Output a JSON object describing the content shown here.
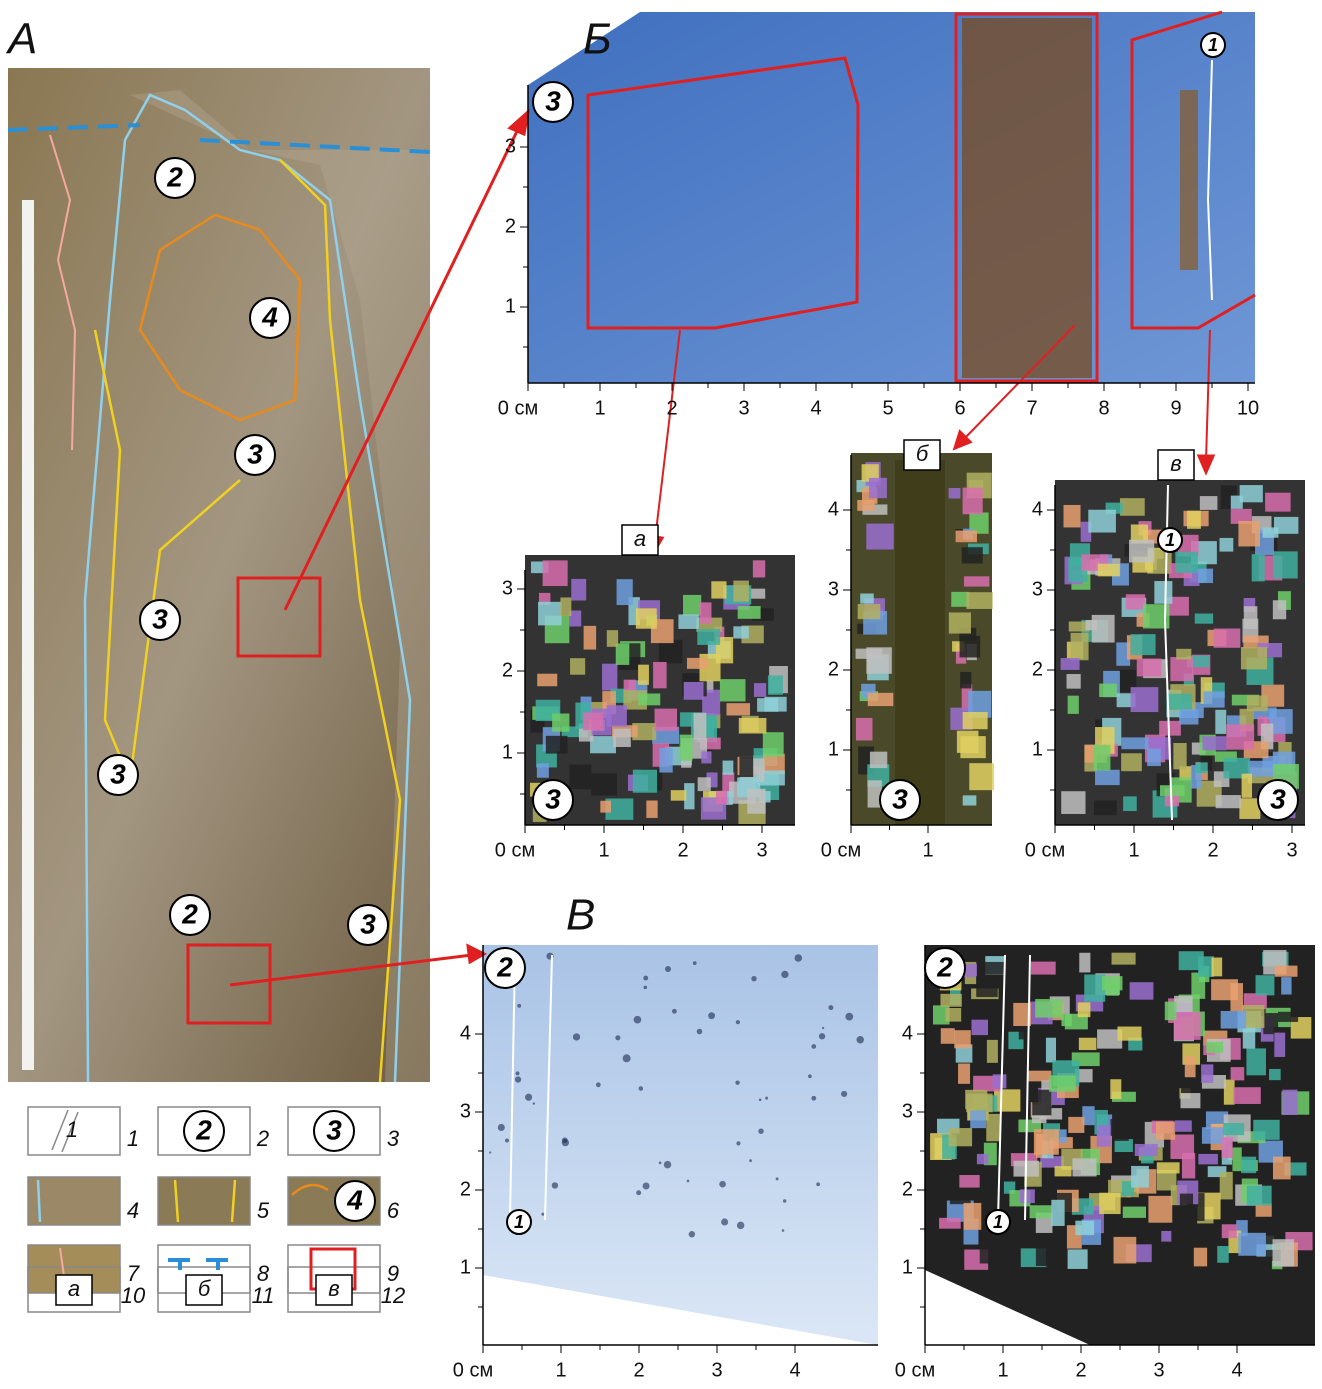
{
  "panel_a": {
    "label": "А",
    "markers": [
      "2",
      "4",
      "3",
      "3",
      "3",
      "2",
      "3"
    ]
  },
  "panel_b": {
    "label": "Б",
    "marker": "3",
    "vein": "1",
    "x_ticks": [
      "0 см",
      "1",
      "2",
      "3",
      "4",
      "5",
      "6",
      "7",
      "8",
      "9",
      "10"
    ],
    "y_ticks": [
      "1",
      "2",
      "3"
    ]
  },
  "subpanels": [
    {
      "label": "а",
      "marker": "3",
      "x_ticks": [
        "0 см",
        "1",
        "2",
        "3"
      ],
      "y_ticks": [
        "1",
        "2",
        "3"
      ]
    },
    {
      "label": "б",
      "marker": "3",
      "x_ticks": [
        "0 см",
        "1"
      ],
      "y_ticks": [
        "1",
        "2",
        "3",
        "4"
      ]
    },
    {
      "label": "в",
      "marker": "3",
      "vein": "1",
      "x_ticks": [
        "0 см",
        "1",
        "2",
        "3"
      ],
      "y_ticks": [
        "1",
        "2",
        "3",
        "4"
      ]
    }
  ],
  "panel_v": {
    "label": "В",
    "left": {
      "marker": "2",
      "vein": "1",
      "x_ticks": [
        "0 см",
        "1",
        "2",
        "3",
        "4"
      ],
      "y_ticks": [
        "1",
        "2",
        "3",
        "4"
      ]
    },
    "right": {
      "marker": "2",
      "vein": "1",
      "x_ticks": [
        "0 см",
        "1",
        "2",
        "3",
        "4"
      ],
      "y_ticks": [
        "1",
        "2",
        "3",
        "4"
      ]
    }
  },
  "legend": {
    "numbers": [
      "1",
      "2",
      "3",
      "4",
      "5",
      "6",
      "7",
      "8",
      "9",
      "10",
      "11",
      "12"
    ],
    "symbols": {
      "vein": "1",
      "ice2": "2",
      "ice3": "3",
      "ice4": "4",
      "a": "а",
      "b": "б",
      "v": "в"
    }
  }
}
